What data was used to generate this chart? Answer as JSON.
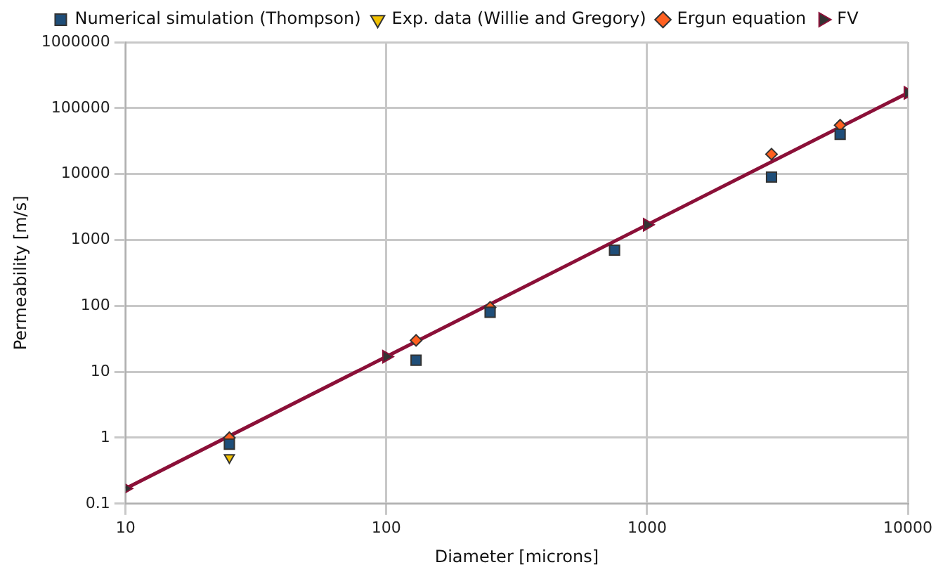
{
  "chart_data": {
    "type": "scatter",
    "xlabel": "Diameter [microns]",
    "ylabel": "Permeability [m/s]",
    "log": "xy",
    "grid": true,
    "legend": "top",
    "xlim": [
      10,
      10000
    ],
    "xticks": [
      10,
      100,
      1000,
      10000
    ],
    "ylim": [
      0.1,
      1000000
    ],
    "yticks": [
      0.1,
      1,
      10,
      100,
      1000,
      10000,
      100000,
      1000000
    ],
    "series": [
      {
        "name": "Numerical simulation (Thompson)",
        "marker": "square",
        "color": "#1f4e79",
        "x": [
          25,
          130,
          250,
          750,
          3000,
          5500
        ],
        "values": [
          0.8,
          15,
          80,
          700,
          9000,
          40000
        ]
      },
      {
        "name": "Exp. data (Willie and Gregory)",
        "marker": "triangle",
        "color": "#f0c000",
        "x": [
          25
        ],
        "values": [
          0.5
        ]
      },
      {
        "name": "Ergun equation",
        "marker": "diamond",
        "color": "#ff6020",
        "x": [
          25,
          130,
          250,
          3000,
          5500
        ],
        "values": [
          1,
          30,
          95,
          20000,
          55000
        ]
      },
      {
        "name": "FV",
        "type": "line",
        "marker": "triangle",
        "color": "#8b1038",
        "x": [
          10,
          100,
          1000,
          10000
        ],
        "values": [
          0.17,
          17,
          1700,
          170000
        ]
      }
    ]
  }
}
